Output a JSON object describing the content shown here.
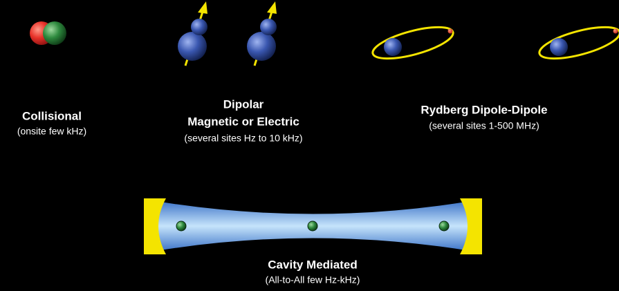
{
  "panels": {
    "collisional": {
      "title": "Collisional",
      "subtitle": "(onsite few kHz)"
    },
    "dipolar": {
      "title": [
        "Dipolar",
        "Magnetic or Electric"
      ],
      "subtitle": "(several sites Hz to 10 kHz)"
    },
    "rydberg": {
      "title": "Rydberg Dipole-Dipole",
      "subtitle": "(several sites 1-500 MHz)"
    },
    "cavity": {
      "title": "Cavity Mediated",
      "subtitle": "(All-to-All few Hz-kHz)"
    }
  }
}
